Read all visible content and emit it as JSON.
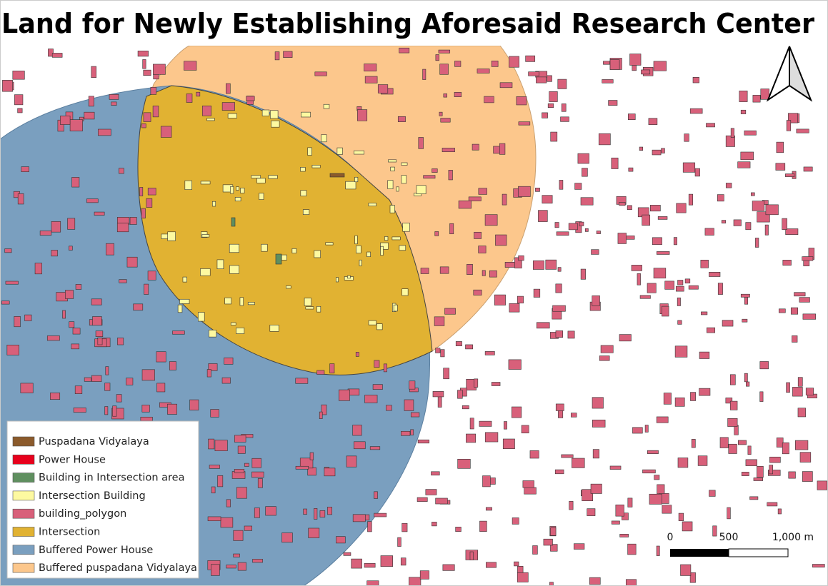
{
  "title": "Land for Newly Establishing Aforesaid Research Center",
  "legend": {
    "items": [
      {
        "label": "Puspadana Vidyalaya",
        "color": "#8b5a2b"
      },
      {
        "label": "Power House",
        "color": "#e8001c"
      },
      {
        "label": "Building in Intersection area",
        "color": "#5f8f5f"
      },
      {
        "label": "Intersection Building",
        "color": "#fdf9a0"
      },
      {
        "label": "building_polygon",
        "color": "#d8607a"
      },
      {
        "label": "Intersection",
        "color": "#e1b232"
      },
      {
        "label": "Buffered Power House",
        "color": "#7a9fbf"
      },
      {
        "label": "Buffered puspadana Vidyalaya",
        "color": "#fcc78c"
      }
    ]
  },
  "scale_bar": {
    "labels": [
      "0",
      "500",
      "1,000 m"
    ]
  }
}
